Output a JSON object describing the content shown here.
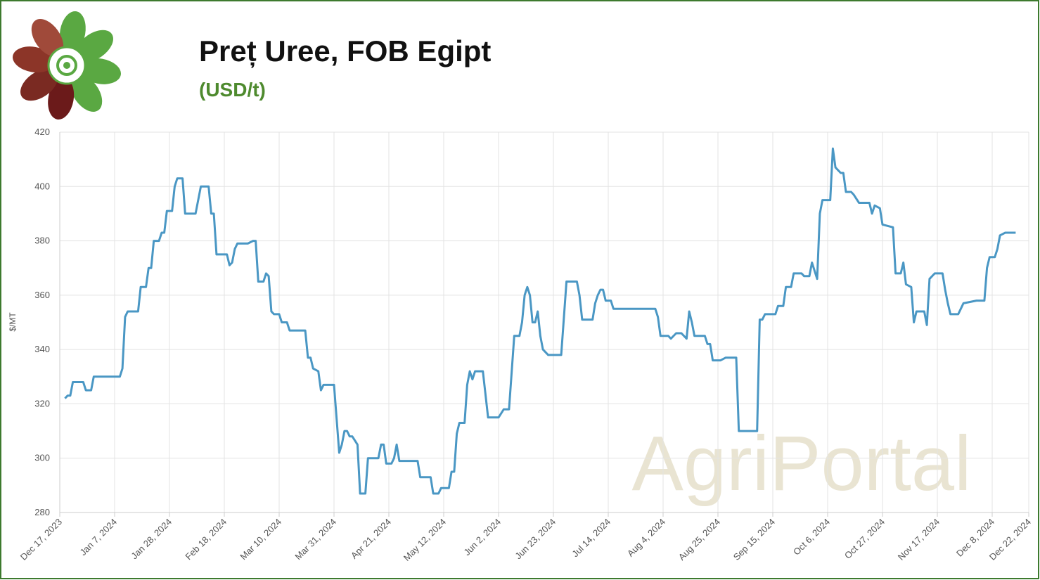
{
  "chart_data": {
    "type": "line",
    "title": "Preț Uree, FOB Egipt",
    "subtitle": "(USD/t)",
    "y_label": "$/MT",
    "watermark": "AgriPortal",
    "x": [
      "2023-12-19",
      "2023-12-20",
      "2023-12-21",
      "2023-12-22",
      "2023-12-26",
      "2023-12-27",
      "2023-12-29",
      "2023-12-30",
      "2024-01-09",
      "2024-01-10",
      "2024-01-11",
      "2024-01-12",
      "2024-01-16",
      "2024-01-17",
      "2024-01-19",
      "2024-01-20",
      "2024-01-21",
      "2024-01-22",
      "2024-01-24",
      "2024-01-25",
      "2024-01-26",
      "2024-01-27",
      "2024-01-29",
      "2024-01-30",
      "2024-01-31",
      "2024-02-02",
      "2024-02-03",
      "2024-02-07",
      "2024-02-09",
      "2024-02-12",
      "2024-02-13",
      "2024-02-14",
      "2024-02-15",
      "2024-02-19",
      "2024-02-20",
      "2024-02-21",
      "2024-02-22",
      "2024-02-23",
      "2024-02-27",
      "2024-02-29",
      "2024-03-01",
      "2024-03-02",
      "2024-03-04",
      "2024-03-05",
      "2024-03-06",
      "2024-03-07",
      "2024-03-08",
      "2024-03-10",
      "2024-03-11",
      "2024-03-13",
      "2024-03-14",
      "2024-03-20",
      "2024-03-21",
      "2024-03-22",
      "2024-03-23",
      "2024-03-25",
      "2024-03-26",
      "2024-03-27",
      "2024-03-31",
      "2024-04-02",
      "2024-04-03",
      "2024-04-04",
      "2024-04-05",
      "2024-04-06",
      "2024-04-07",
      "2024-04-09",
      "2024-04-10",
      "2024-04-12",
      "2024-04-13",
      "2024-04-17",
      "2024-04-18",
      "2024-04-19",
      "2024-04-20",
      "2024-04-22",
      "2024-04-23",
      "2024-04-24",
      "2024-04-25",
      "2024-05-02",
      "2024-05-03",
      "2024-05-07",
      "2024-05-08",
      "2024-05-10",
      "2024-05-11",
      "2024-05-14",
      "2024-05-15",
      "2024-05-16",
      "2024-05-17",
      "2024-05-18",
      "2024-05-20",
      "2024-05-21",
      "2024-05-22",
      "2024-05-23",
      "2024-05-24",
      "2024-05-27",
      "2024-05-29",
      "2024-06-02",
      "2024-06-04",
      "2024-06-06",
      "2024-06-08",
      "2024-06-10",
      "2024-06-11",
      "2024-06-12",
      "2024-06-13",
      "2024-06-14",
      "2024-06-15",
      "2024-06-16",
      "2024-06-17",
      "2024-06-18",
      "2024-06-19",
      "2024-06-21",
      "2024-06-26",
      "2024-06-28",
      "2024-07-02",
      "2024-07-03",
      "2024-07-04",
      "2024-07-08",
      "2024-07-09",
      "2024-07-10",
      "2024-07-11",
      "2024-07-12",
      "2024-07-13",
      "2024-07-15",
      "2024-07-16",
      "2024-08-01",
      "2024-08-02",
      "2024-08-03",
      "2024-08-06",
      "2024-08-07",
      "2024-08-09",
      "2024-08-11",
      "2024-08-13",
      "2024-08-14",
      "2024-08-15",
      "2024-08-16",
      "2024-08-20",
      "2024-08-21",
      "2024-08-22",
      "2024-08-23",
      "2024-08-26",
      "2024-08-28",
      "2024-09-01",
      "2024-09-02",
      "2024-09-09",
      "2024-09-10",
      "2024-09-11",
      "2024-09-12",
      "2024-09-16",
      "2024-09-17",
      "2024-09-19",
      "2024-09-20",
      "2024-09-22",
      "2024-09-23",
      "2024-09-26",
      "2024-09-27",
      "2024-09-29",
      "2024-09-30",
      "2024-10-02",
      "2024-10-03",
      "2024-10-04",
      "2024-10-07",
      "2024-10-08",
      "2024-10-09",
      "2024-10-11",
      "2024-10-12",
      "2024-10-13",
      "2024-10-15",
      "2024-10-16",
      "2024-10-18",
      "2024-10-22",
      "2024-10-23",
      "2024-10-24",
      "2024-10-26",
      "2024-10-27",
      "2024-10-31",
      "2024-11-01",
      "2024-11-03",
      "2024-11-04",
      "2024-11-05",
      "2024-11-07",
      "2024-11-08",
      "2024-11-09",
      "2024-11-12",
      "2024-11-13",
      "2024-11-14",
      "2024-11-16",
      "2024-11-19",
      "2024-11-20",
      "2024-11-21",
      "2024-11-22",
      "2024-11-25",
      "2024-11-26",
      "2024-11-27",
      "2024-12-02",
      "2024-12-05",
      "2024-12-06",
      "2024-12-07",
      "2024-12-09",
      "2024-12-10",
      "2024-12-11",
      "2024-12-13",
      "2024-12-17"
    ],
    "series": [
      {
        "name": "Uree FOB Egipt",
        "color": "#4a97c4",
        "values": [
          322,
          323,
          323,
          328,
          328,
          325,
          325,
          330,
          330,
          333,
          352,
          354,
          354,
          363,
          363,
          370,
          370,
          380,
          380,
          383,
          383,
          391,
          391,
          400,
          403,
          403,
          390,
          390,
          400,
          400,
          390,
          390,
          375,
          375,
          371,
          372,
          377,
          379,
          379,
          380,
          380,
          365,
          365,
          368,
          367,
          354,
          353,
          353,
          350,
          350,
          347,
          347,
          337,
          337,
          333,
          332,
          325,
          327,
          327,
          302,
          305,
          310,
          310,
          308,
          308,
          305,
          287,
          287,
          300,
          300,
          305,
          305,
          298,
          298,
          300,
          305,
          299,
          299,
          293,
          293,
          287,
          287,
          289,
          289,
          295,
          295,
          309,
          313,
          313,
          327,
          332,
          329,
          332,
          332,
          315,
          315,
          318,
          318,
          345,
          345,
          350,
          360,
          363,
          360,
          350,
          350,
          354,
          345,
          340,
          338,
          338,
          365,
          365,
          360,
          351,
          351,
          357,
          360,
          362,
          362,
          358,
          358,
          355,
          355,
          352,
          345,
          345,
          344,
          346,
          346,
          344,
          354,
          350,
          345,
          345,
          342,
          342,
          336,
          336,
          337,
          337,
          310,
          310,
          351,
          351,
          353,
          353,
          356,
          356,
          363,
          363,
          368,
          368,
          367,
          367,
          372,
          366,
          390,
          395,
          395,
          414,
          407,
          405,
          405,
          398,
          398,
          397,
          394,
          394,
          390,
          393,
          392,
          386,
          385,
          368,
          368,
          372,
          364,
          363,
          350,
          354,
          354,
          349,
          366,
          368,
          368,
          362,
          357,
          353,
          353,
          355,
          357,
          358,
          358,
          370,
          374,
          374,
          377,
          382,
          383,
          383
        ]
      }
    ],
    "xlim": [
      "2023-12-17",
      "2024-12-22"
    ],
    "xticks": [
      {
        "value": "2023-12-17",
        "label": "Dec 17, 2023"
      },
      {
        "value": "2024-01-07",
        "label": "Jan 7, 2024"
      },
      {
        "value": "2024-01-28",
        "label": "Jan 28, 2024"
      },
      {
        "value": "2024-02-18",
        "label": "Feb 18, 2024"
      },
      {
        "value": "2024-03-10",
        "label": "Mar 10, 2024"
      },
      {
        "value": "2024-03-31",
        "label": "Mar 31, 2024"
      },
      {
        "value": "2024-04-21",
        "label": "Apr 21, 2024"
      },
      {
        "value": "2024-05-12",
        "label": "May 12, 2024"
      },
      {
        "value": "2024-06-02",
        "label": "Jun 2, 2024"
      },
      {
        "value": "2024-06-23",
        "label": "Jun 23, 2024"
      },
      {
        "value": "2024-07-14",
        "label": "Jul 14, 2024"
      },
      {
        "value": "2024-08-04",
        "label": "Aug 4, 2024"
      },
      {
        "value": "2024-08-25",
        "label": "Aug 25, 2024"
      },
      {
        "value": "2024-09-15",
        "label": "Sep 15, 2024"
      },
      {
        "value": "2024-10-06",
        "label": "Oct 6, 2024"
      },
      {
        "value": "2024-10-27",
        "label": "Oct 27, 2024"
      },
      {
        "value": "2024-11-17",
        "label": "Nov 17, 2024"
      },
      {
        "value": "2024-12-08",
        "label": "Dec 8, 2024"
      },
      {
        "value": "2024-12-22",
        "label": "Dec 22, 2024"
      }
    ],
    "ylim": [
      280,
      420
    ],
    "yticks": [
      280,
      300,
      320,
      340,
      360,
      380,
      400,
      420
    ],
    "grid": true
  }
}
